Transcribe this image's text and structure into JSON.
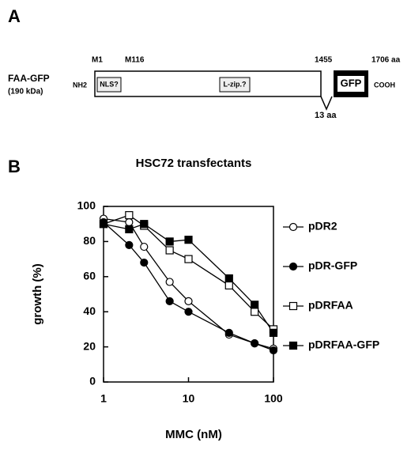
{
  "panel_labels": [
    "A",
    "B"
  ],
  "diagram": {
    "construct": "FAA-GFP",
    "mass": "(190 kDa)",
    "n_term": "NH2",
    "c_term": "COOH",
    "positions": [
      "M1",
      "M116",
      "1455",
      "1706 aa"
    ],
    "domains": [
      "NLS?",
      "L-zip.?"
    ],
    "tag": "GFP",
    "insert": "13 aa"
  },
  "chart_data": {
    "type": "line",
    "title": "HSC72 transfectants",
    "xlabel": "MMC (nM)",
    "ylabel": "growth (%)",
    "x": [
      1,
      2,
      3,
      6,
      10,
      30,
      60,
      100
    ],
    "series": [
      {
        "name": "pDR2",
        "color": "#000000",
        "marker": "circle",
        "filled": false,
        "values": [
          93,
          91,
          77,
          57,
          46,
          27,
          22,
          19
        ]
      },
      {
        "name": "pDR-GFP",
        "color": "#000000",
        "marker": "circle",
        "filled": true,
        "values": [
          91,
          78,
          68,
          46,
          40,
          28,
          22,
          18
        ]
      },
      {
        "name": "pDRFAA",
        "color": "#000000",
        "marker": "square",
        "filled": false,
        "values": [
          90,
          95,
          89,
          75,
          70,
          55,
          40,
          30
        ]
      },
      {
        "name": "pDRFAA-GFP",
        "color": "#000000",
        "marker": "square",
        "filled": true,
        "values": [
          90,
          87,
          90,
          80,
          81,
          59,
          44,
          28
        ]
      }
    ],
    "xlim": [
      1,
      100
    ],
    "ylim": [
      0,
      100
    ],
    "xticks": [
      1,
      10,
      100
    ],
    "yticks": [
      0,
      20,
      40,
      60,
      80,
      100
    ],
    "xscale": "log",
    "legend": "right"
  }
}
